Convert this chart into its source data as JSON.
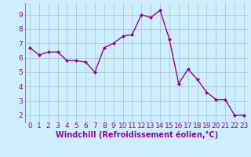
{
  "x": [
    0,
    1,
    2,
    3,
    4,
    5,
    6,
    7,
    8,
    9,
    10,
    11,
    12,
    13,
    14,
    15,
    16,
    17,
    18,
    19,
    20,
    21,
    22,
    23
  ],
  "y": [
    6.7,
    6.2,
    6.4,
    6.4,
    5.8,
    5.8,
    5.7,
    5.0,
    6.7,
    7.0,
    7.5,
    7.6,
    9.0,
    8.8,
    9.3,
    7.3,
    4.2,
    5.2,
    4.5,
    3.6,
    3.1,
    3.1,
    2.0,
    2.0
  ],
  "line_color": "#990099",
  "marker": "D",
  "marker_size": 2.0,
  "line_width": 1.0,
  "bg_color": "#cceeff",
  "grid_color": "#aacccc",
  "xlabel": "Windchill (Refroidissement éolien,°C)",
  "xlabel_color": "#990099",
  "ylim": [
    1.5,
    9.8
  ],
  "xlim": [
    -0.5,
    23.5
  ],
  "yticks": [
    2,
    3,
    4,
    5,
    6,
    7,
    8,
    9
  ],
  "xticks": [
    0,
    1,
    2,
    3,
    4,
    5,
    6,
    7,
    8,
    9,
    10,
    11,
    12,
    13,
    14,
    15,
    16,
    17,
    18,
    19,
    20,
    21,
    22,
    23
  ],
  "tick_color": "#990099",
  "tick_label_size": 6.5,
  "xlabel_size": 7.0
}
